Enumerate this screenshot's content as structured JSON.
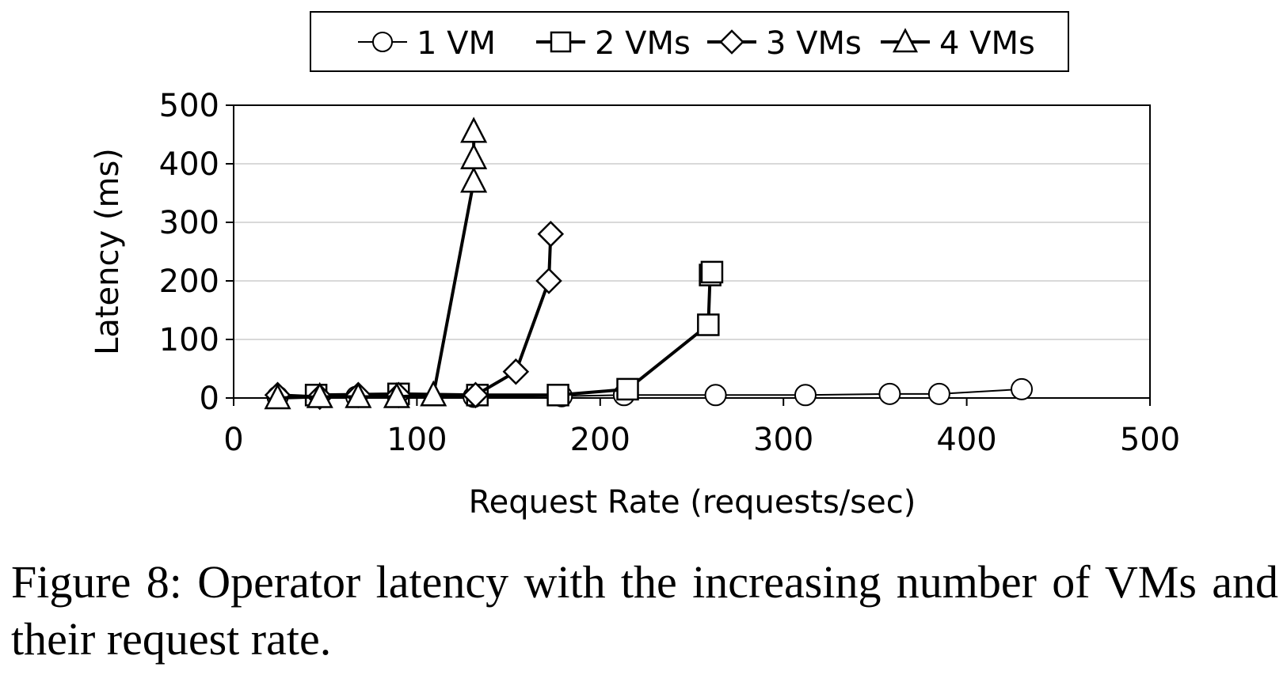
{
  "chart_data": {
    "type": "line",
    "xlabel": "Request Rate (requests/sec)",
    "ylabel": "Latency (ms)",
    "xlim": [
      0,
      500
    ],
    "ylim": [
      0,
      500
    ],
    "xticks": [
      0,
      100,
      200,
      300,
      400,
      500
    ],
    "yticks": [
      0,
      100,
      200,
      300,
      400,
      500
    ],
    "grid": "horizontal",
    "legend_position": "top",
    "line_color": "#000000",
    "marker_fill": "#ffffff",
    "series": [
      {
        "name": "1 VM",
        "marker": "circle",
        "line_width": 2,
        "x": [
          24,
          46,
          67,
          90,
          131,
          179,
          213,
          263,
          312,
          358,
          385,
          430
        ],
        "y": [
          2,
          2,
          2,
          2,
          2,
          3,
          5,
          5,
          5,
          7,
          7,
          15
        ]
      },
      {
        "name": "2 VMs",
        "marker": "square",
        "line_width": 4,
        "x": [
          45,
          90,
          133,
          177,
          215,
          259,
          260,
          261
        ],
        "y": [
          5,
          7,
          5,
          5,
          15,
          125,
          210,
          215
        ]
      },
      {
        "name": "3 VMs",
        "marker": "diamond",
        "line_width": 4,
        "x": [
          24,
          47,
          68,
          90,
          132,
          154,
          172,
          173
        ],
        "y": [
          5,
          2,
          5,
          5,
          5,
          45,
          200,
          280
        ]
      },
      {
        "name": "4 VMs",
        "marker": "triangle",
        "line_width": 4,
        "x": [
          24,
          47,
          68,
          89,
          109,
          131,
          131,
          131
        ],
        "y": [
          0,
          2,
          2,
          2,
          5,
          370,
          410,
          455
        ]
      }
    ]
  },
  "caption": "Figure 8: Operator latency with the increasing number of VMs and their request rate."
}
